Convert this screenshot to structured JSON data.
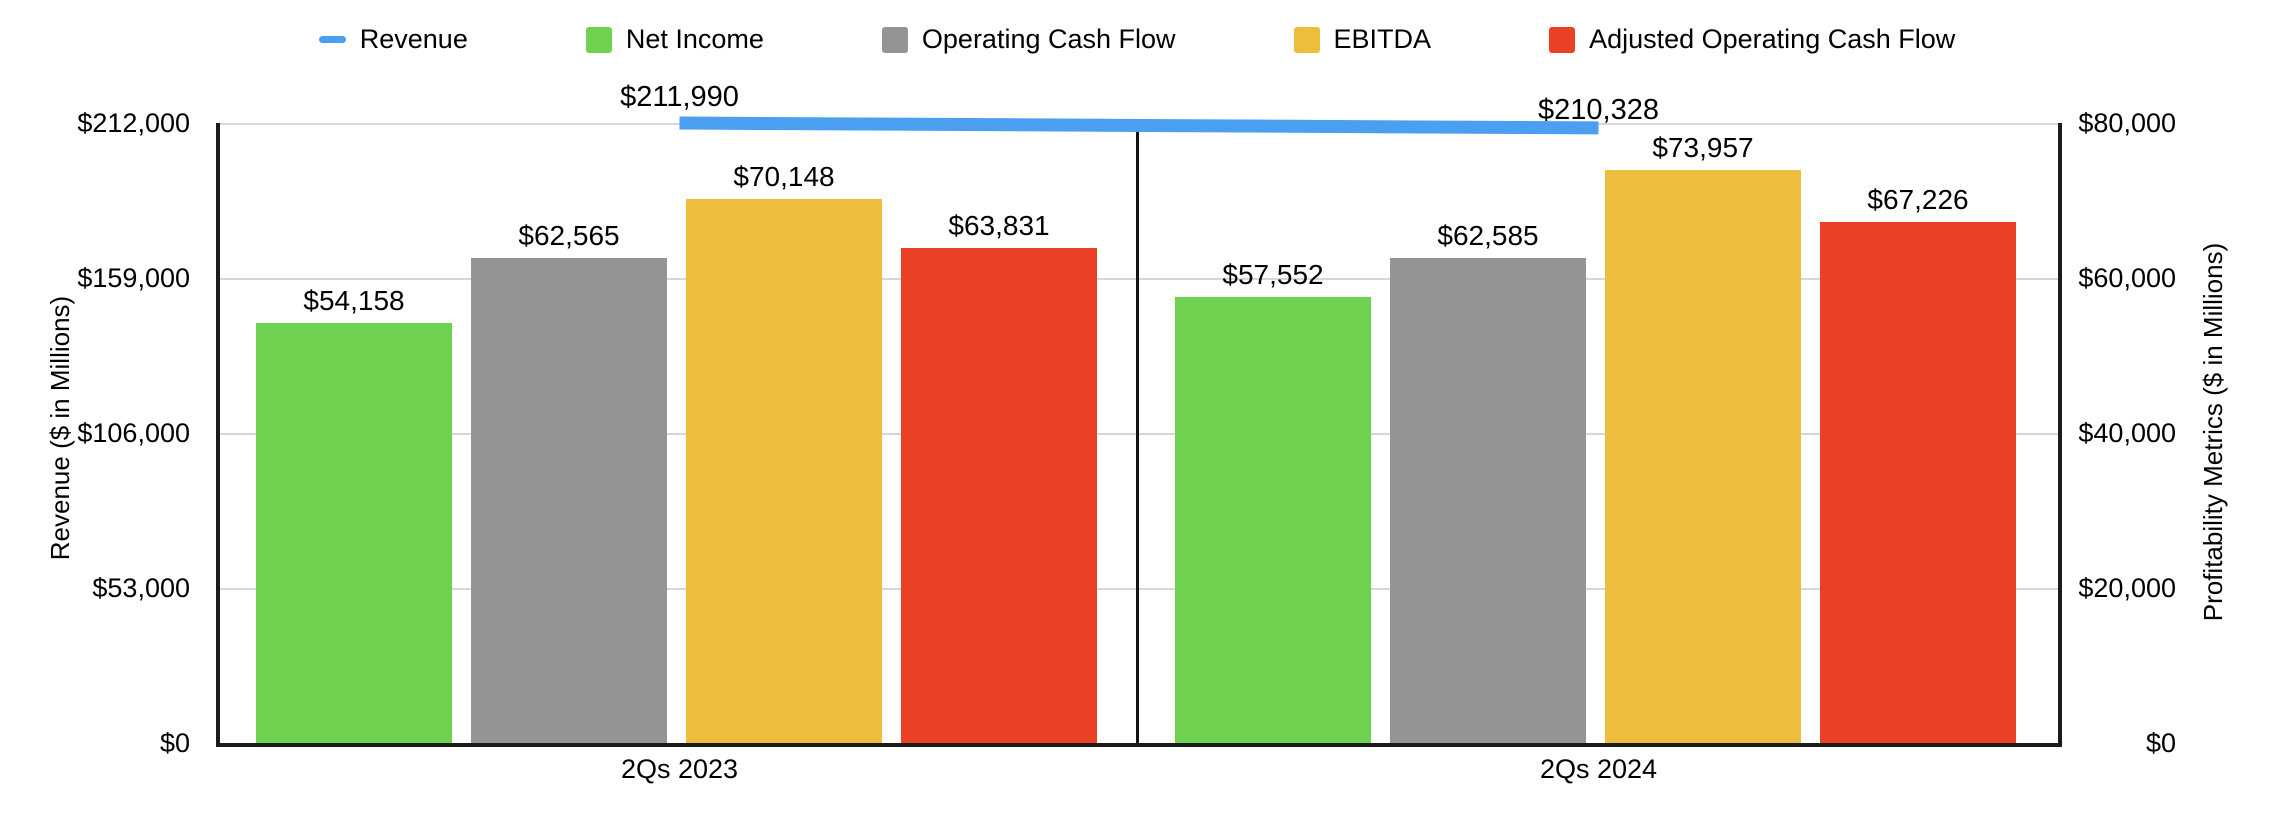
{
  "legend": {
    "items": [
      {
        "label": "Revenue",
        "color": "#4a9ff0",
        "swatch": "line"
      },
      {
        "label": "Net Income",
        "color": "#6ed150",
        "swatch": "box"
      },
      {
        "label": "Operating Cash Flow",
        "color": "#949494",
        "swatch": "box"
      },
      {
        "label": "EBITDA",
        "color": "#edbd3e",
        "swatch": "box"
      },
      {
        "label": "Adjusted Operating Cash Flow",
        "color": "#ea4026",
        "swatch": "box"
      }
    ]
  },
  "axes": {
    "left": {
      "title": "Revenue ($ in Millions)",
      "ticks": [
        "$212,000",
        "$159,000",
        "$106,000",
        "$53,000",
        "$0"
      ],
      "max": 212000
    },
    "right": {
      "title": "Profitability Metrics ($ in Millions)",
      "ticks": [
        "$80,000",
        "$60,000",
        "$40,000",
        "$20,000",
        "$0"
      ],
      "max": 80000
    }
  },
  "chart_data": {
    "type": "bar",
    "subtype": "grouped bars on right axis with line series on left axis",
    "categories": [
      "2Qs 2023",
      "2Qs 2024"
    ],
    "series": [
      {
        "name": "Net Income",
        "axis": "right",
        "color": "#6ed150",
        "values": [
          54158,
          57552
        ],
        "labels": [
          "$54,158",
          "$57,552"
        ]
      },
      {
        "name": "Operating Cash Flow",
        "axis": "right",
        "color": "#949494",
        "values": [
          62565,
          62585
        ],
        "labels": [
          "$62,565",
          "$62,585"
        ]
      },
      {
        "name": "EBITDA",
        "axis": "right",
        "color": "#edbd3e",
        "values": [
          70148,
          73957
        ],
        "labels": [
          "$70,148",
          "$73,957"
        ]
      },
      {
        "name": "Adjusted Operating Cash Flow",
        "axis": "right",
        "color": "#ea4026",
        "values": [
          63831,
          67226
        ],
        "labels": [
          "$63,831",
          "$67,226"
        ]
      }
    ],
    "line_series": {
      "name": "Revenue",
      "axis": "left",
      "color": "#4a9ff0",
      "values": [
        211990,
        210328
      ],
      "labels": [
        "$211,990",
        "$210,328"
      ]
    },
    "title": "",
    "xlabel": "",
    "ylabel_left": "Revenue ($ in Millions)",
    "ylabel_right": "Profitability Metrics ($ in Millions)",
    "ylim_left": [
      0,
      212000
    ],
    "ylim_right": [
      0,
      80000
    ],
    "grid": true,
    "legend_position": "top"
  }
}
